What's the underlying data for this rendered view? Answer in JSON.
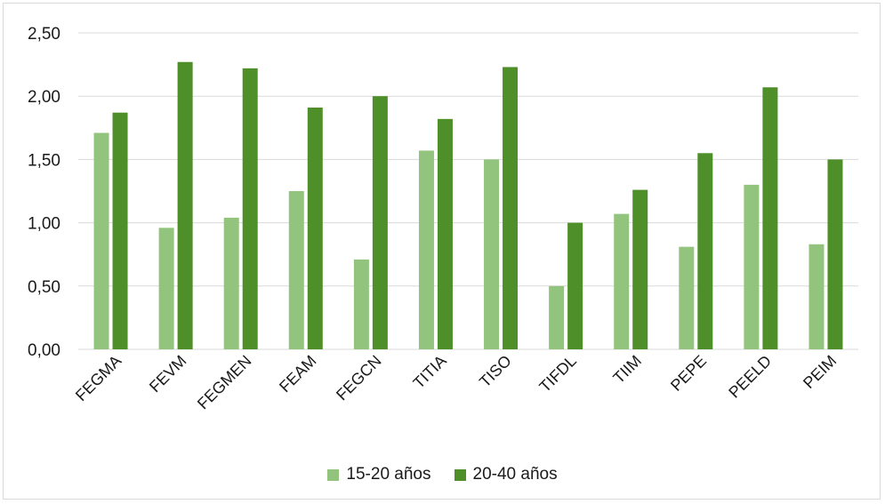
{
  "chart_data": {
    "type": "bar",
    "categories": [
      "FEGMA",
      "FEVM",
      "FEGMEN",
      "FEAM",
      "FEGCN",
      "TITIA",
      "TISO",
      "TIFDL",
      "TIIM",
      "PEPE",
      "PEELD",
      "PEIM"
    ],
    "series": [
      {
        "name": "15-20 años",
        "color": "#92c47e",
        "values": [
          1.71,
          0.96,
          1.04,
          1.25,
          0.71,
          1.57,
          1.5,
          0.5,
          1.07,
          0.81,
          1.3,
          0.83
        ]
      },
      {
        "name": "20-40 años",
        "color": "#4f8f2a",
        "values": [
          1.87,
          2.27,
          2.22,
          1.91,
          2.0,
          1.82,
          2.23,
          1.0,
          1.26,
          1.55,
          2.07,
          1.5
        ]
      }
    ],
    "yticks": [
      "0,00",
      "0,50",
      "1,00",
      "1,50",
      "2,00",
      "2,50"
    ],
    "ylim": [
      0,
      2.5
    ],
    "title": "",
    "xlabel": "",
    "ylabel": "",
    "grid": true,
    "legend_position": "bottom"
  }
}
